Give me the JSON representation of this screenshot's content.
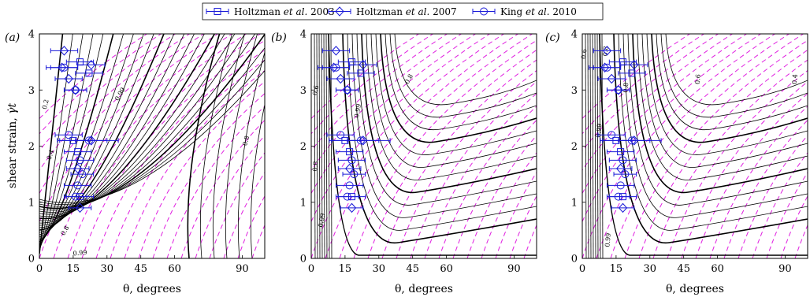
{
  "legend": {
    "entries": [
      {
        "prefix": "Holtzman ",
        "italic": "et al.",
        "suffix": " 2003",
        "marker": "square"
      },
      {
        "prefix": "Holtzman ",
        "italic": "et al.",
        "suffix": " 2007",
        "marker": "diamond"
      },
      {
        "prefix": "King ",
        "italic": "et al.",
        "suffix": " 2010",
        "marker": "circle"
      }
    ],
    "placement": "top-center"
  },
  "colors": {
    "contour": "#000000",
    "dashed": "#e020e0",
    "data": "#1a1ad8"
  },
  "chart_data": [
    {
      "panel": "(a)",
      "type": "scatter",
      "xlabel": "θ, degrees",
      "ylabel": "shear strain, γ̇t",
      "xlim": [
        0,
        100
      ],
      "ylim": [
        0,
        4
      ],
      "xticks": [
        "0",
        "15",
        "30",
        "45",
        "60",
        "90"
      ],
      "xtick_values": [
        0,
        15,
        30,
        45,
        60,
        90
      ],
      "yticks": [
        "0",
        "1",
        "2",
        "3",
        "4"
      ],
      "contour_labels": [
        {
          "text": "0.2",
          "x": 3,
          "y": 2.65,
          "rot": -75
        },
        {
          "text": "0.4",
          "x": 5,
          "y": 1.75,
          "rot": -70
        },
        {
          "text": "0.8",
          "x": 11,
          "y": 0.4,
          "rot": -60
        },
        {
          "text": "0.8",
          "x": 19,
          "y": 0.9,
          "rot": -50
        },
        {
          "text": "0.99",
          "x": 35,
          "y": 2.8,
          "rot": -60
        },
        {
          "text": "0.99",
          "x": 15,
          "y": 0.05,
          "rot": -5
        },
        {
          "text": "0.8",
          "x": 92,
          "y": 2.0,
          "rot": -75
        }
      ]
    },
    {
      "panel": "(b)",
      "type": "scatter",
      "xlabel": "θ, degrees",
      "ylabel": "",
      "xlim": [
        0,
        100
      ],
      "ylim": [
        0,
        4
      ],
      "xticks": [
        "0",
        "15",
        "30",
        "45",
        "60",
        "90"
      ],
      "xtick_values": [
        0,
        15,
        30,
        45,
        60,
        90
      ],
      "yticks": [
        "0",
        "1",
        "2",
        "3",
        "4"
      ],
      "contour_labels": [
        {
          "text": "0.6",
          "x": 2.5,
          "y": 2.9,
          "rot": -80
        },
        {
          "text": "0.8",
          "x": 2.5,
          "y": 1.55,
          "rot": -85
        },
        {
          "text": "0.99",
          "x": 21,
          "y": 2.5,
          "rot": -80
        },
        {
          "text": "0.99",
          "x": 5,
          "y": 0.55,
          "rot": -80
        },
        {
          "text": "0.8",
          "x": 43,
          "y": 3.1,
          "rot": -60
        }
      ]
    },
    {
      "panel": "(c)",
      "type": "scatter",
      "xlabel": "θ, degrees",
      "ylabel": "",
      "xlim": [
        0,
        100
      ],
      "ylim": [
        0,
        4
      ],
      "xticks": [
        "0",
        "15",
        "30",
        "45",
        "60",
        "90"
      ],
      "xtick_values": [
        0,
        15,
        30,
        45,
        60,
        90
      ],
      "yticks": [
        "0",
        "1",
        "2",
        "3",
        "4"
      ],
      "contour_labels": [
        {
          "text": "0.6",
          "x": 1.5,
          "y": 3.55,
          "rot": -85
        },
        {
          "text": "0.8",
          "x": 11,
          "y": 3.6,
          "rot": -85
        },
        {
          "text": "0.8",
          "x": 20,
          "y": 2.95,
          "rot": -85
        },
        {
          "text": "0.99",
          "x": 8,
          "y": 2.15,
          "rot": -85
        },
        {
          "text": "0.99",
          "x": 12,
          "y": 0.2,
          "rot": -85
        },
        {
          "text": "0.6",
          "x": 52,
          "y": 3.1,
          "rot": -85
        },
        {
          "text": "0.4",
          "x": 95,
          "y": 3.1,
          "rot": -85
        }
      ]
    }
  ],
  "data_points": [
    {
      "series": "Holtzman et al. 2003",
      "marker": "square",
      "x": 22,
      "y": 3.3,
      "xerr": 6
    },
    {
      "series": "Holtzman et al. 2003",
      "marker": "square",
      "x": 18,
      "y": 3.5,
      "xerr": 6
    },
    {
      "series": "Holtzman et al. 2003",
      "marker": "square",
      "x": 15,
      "y": 2.1,
      "xerr": 7
    },
    {
      "series": "Holtzman et al. 2003",
      "marker": "square",
      "x": 17,
      "y": 1.9,
      "xerr": 6
    },
    {
      "series": "Holtzman et al. 2003",
      "marker": "square",
      "x": 18,
      "y": 1.1,
      "xerr": 6
    },
    {
      "series": "Holtzman et al. 2007",
      "marker": "diamond",
      "x": 11,
      "y": 3.7,
      "xerr": 6
    },
    {
      "series": "Holtzman et al. 2007",
      "marker": "diamond",
      "x": 10,
      "y": 3.4,
      "xerr": 7
    },
    {
      "series": "Holtzman et al. 2007",
      "marker": "diamond",
      "x": 23,
      "y": 3.45,
      "xerr": 6
    },
    {
      "series": "Holtzman et al. 2007",
      "marker": "diamond",
      "x": 13,
      "y": 3.2,
      "xerr": 6
    },
    {
      "series": "Holtzman et al. 2007",
      "marker": "diamond",
      "x": 16,
      "y": 3.0,
      "xerr": 5
    },
    {
      "series": "Holtzman et al. 2007",
      "marker": "diamond",
      "x": 23,
      "y": 2.1,
      "xerr": 7
    },
    {
      "series": "Holtzman et al. 2007",
      "marker": "diamond",
      "x": 17,
      "y": 1.6,
      "xerr": 5
    },
    {
      "series": "Holtzman et al. 2007",
      "marker": "diamond",
      "x": 18,
      "y": 0.9,
      "xerr": 5
    },
    {
      "series": "King et al. 2010",
      "marker": "circle",
      "x": 11,
      "y": 3.4,
      "xerr": 6
    },
    {
      "series": "King et al. 2010",
      "marker": "circle",
      "x": 16,
      "y": 3.0,
      "xerr": 5
    },
    {
      "series": "King et al. 2010",
      "marker": "circle",
      "x": 13,
      "y": 2.2,
      "xerr": 6
    },
    {
      "series": "King et al. 2010",
      "marker": "circle",
      "x": 22,
      "y": 2.1,
      "xerr": 13
    },
    {
      "series": "King et al. 2010",
      "marker": "circle",
      "x": 18,
      "y": 1.75,
      "xerr": 6
    },
    {
      "series": "King et al. 2010",
      "marker": "circle",
      "x": 19,
      "y": 1.5,
      "xerr": 5
    },
    {
      "series": "King et al. 2010",
      "marker": "circle",
      "x": 17,
      "y": 1.3,
      "xerr": 6
    },
    {
      "series": "King et al. 2010",
      "marker": "circle",
      "x": 16,
      "y": 1.1,
      "xerr": 5
    }
  ]
}
